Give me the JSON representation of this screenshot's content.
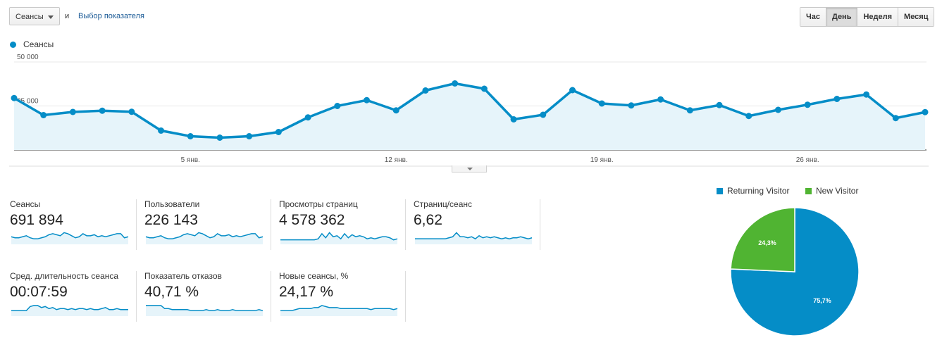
{
  "toolbar": {
    "metric_select": "Сеансы",
    "and_text": "и",
    "pick_metric_link": "Выбор показателя",
    "periods": [
      "Час",
      "День",
      "Неделя",
      "Месяц"
    ],
    "active_period": "День"
  },
  "colors": {
    "accent": "#058dc7",
    "returning": "#058dc7",
    "new": "#50b432",
    "area_fill": "#e6f4fa"
  },
  "chart_data": [
    {
      "type": "area",
      "series": [
        {
          "name": "Сеансы",
          "values": [
            29500,
            19800,
            21600,
            22300,
            21700,
            11000,
            7800,
            7000,
            7800,
            10200,
            18500,
            25000,
            28300,
            22500,
            33800,
            37800,
            34800,
            17400,
            20000,
            34000,
            26400,
            25300,
            28700,
            22500,
            25500,
            19300,
            22800,
            25700,
            29000,
            31500,
            18100,
            21500
          ]
        }
      ],
      "x_ticks": [
        {
          "index": 6,
          "label": "5 янв."
        },
        {
          "index": 13,
          "label": "12 янв."
        },
        {
          "index": 20,
          "label": "19 янв."
        },
        {
          "index": 27,
          "label": "26 янв."
        }
      ],
      "y_ticks": [
        {
          "value": 50000,
          "label": "50 000"
        },
        {
          "value": 25000,
          "label": "25 000"
        }
      ],
      "ylim": [
        0,
        50000
      ],
      "grid": true
    },
    {
      "type": "pie",
      "slices": [
        {
          "name": "Returning Visitor",
          "value": 75.7,
          "label": "75,7%"
        },
        {
          "name": "New Visitor",
          "value": 24.3,
          "label": "24,3%"
        }
      ],
      "legend_position": "top"
    }
  ],
  "scorecards": [
    {
      "label": "Сеансы",
      "value": "691 894",
      "spark": [
        6,
        5,
        5,
        6,
        7,
        5,
        4,
        4,
        5,
        6,
        8,
        9,
        8,
        7,
        10,
        9,
        7,
        5,
        6,
        9,
        7,
        7,
        8,
        6,
        7,
        6,
        7,
        8,
        9,
        9,
        5,
        6
      ]
    },
    {
      "label": "Пользователи",
      "value": "226 143",
      "spark": [
        6,
        5,
        5,
        6,
        7,
        5,
        4,
        4,
        5,
        6,
        8,
        9,
        8,
        7,
        10,
        9,
        7,
        5,
        6,
        9,
        7,
        7,
        8,
        6,
        7,
        6,
        7,
        8,
        9,
        9,
        5,
        6
      ]
    },
    {
      "label": "Просмотры страниц",
      "value": "4 578 362",
      "spark": [
        3,
        3,
        3,
        3,
        3,
        3,
        3,
        3,
        3,
        3,
        4,
        9,
        5,
        10,
        6,
        7,
        4,
        9,
        5,
        8,
        6,
        7,
        6,
        4,
        5,
        4,
        5,
        6,
        6,
        5,
        3,
        4
      ]
    },
    {
      "label": "Страниц/сеанс",
      "value": "6,62",
      "spark": [
        4,
        4,
        4,
        4,
        4,
        4,
        4,
        4,
        4,
        5,
        6,
        10,
        6,
        6,
        5,
        6,
        4,
        7,
        5,
        6,
        5,
        6,
        5,
        4,
        5,
        4,
        5,
        5,
        6,
        5,
        4,
        5
      ]
    },
    {
      "label": "Сред. длительность сеанса",
      "value": "00:07:59",
      "spark": [
        4,
        4,
        4,
        4,
        4,
        8,
        9,
        9,
        7,
        8,
        6,
        7,
        5,
        6,
        6,
        5,
        6,
        5,
        6,
        6,
        5,
        6,
        5,
        5,
        6,
        7,
        5,
        5,
        6,
        5,
        5,
        5
      ]
    },
    {
      "label": "Показатель отказов",
      "value": "40,71 %",
      "spark": [
        9,
        9,
        9,
        9,
        9,
        6,
        6,
        5,
        5,
        5,
        5,
        5,
        4,
        4,
        4,
        4,
        5,
        4,
        4,
        5,
        4,
        4,
        4,
        5,
        4,
        4,
        4,
        4,
        4,
        4,
        5,
        4
      ]
    },
    {
      "label": "Новые сеансы, %",
      "value": "24,17 %",
      "spark": [
        4,
        4,
        4,
        4,
        5,
        6,
        6,
        6,
        6,
        7,
        7,
        9,
        8,
        7,
        7,
        7,
        6,
        6,
        6,
        6,
        6,
        6,
        6,
        6,
        5,
        6,
        6,
        6,
        6,
        6,
        5,
        6
      ]
    }
  ]
}
